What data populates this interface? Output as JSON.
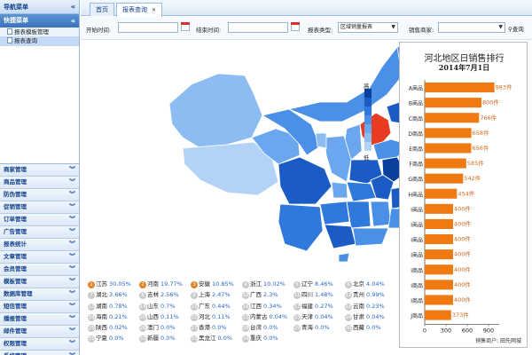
{
  "sidebar": {
    "title": "导航菜单",
    "quick_menu": "快捷菜单",
    "quick_items": [
      {
        "label": "报表模板管理",
        "active": false
      },
      {
        "label": "报表查询",
        "active": true
      }
    ],
    "menus": [
      "商家管理",
      "商品管理",
      "防伪管理",
      "促销管理",
      "订单管理",
      "广告管理",
      "报表统计",
      "文章管理",
      "会员管理",
      "模板管理",
      "数据库管理",
      "短信管理",
      "播报管理",
      "邮件管理",
      "权限管理",
      "系统管理"
    ]
  },
  "tabs": [
    {
      "label": "首页",
      "active": false
    },
    {
      "label": "报表查询",
      "active": true
    }
  ],
  "filters": {
    "start_label": "开始时间:",
    "start_value": "",
    "end_label": "结束时间:",
    "end_value": "",
    "type_label": "报表类型:",
    "type_value": "区域销量报表",
    "merchant_label": "销售商家:",
    "merchant_value": "",
    "search_label": "查询"
  },
  "map": {
    "legend_high": "高",
    "legend_low": "低",
    "legend_colors": [
      "#0b3f9e",
      "#1b5cc4",
      "#2f78dc",
      "#4a90e6",
      "#6aa7ee",
      "#8cbcf2",
      "#b3d2f7"
    ],
    "highlight_color": "#e83b1f"
  },
  "province_list": [
    [
      {
        "rank": "1",
        "name": "江苏",
        "value": "30.05%"
      },
      {
        "rank": "2",
        "name": "河南",
        "value": "19.77%"
      },
      {
        "rank": "3",
        "name": "安徽",
        "value": "10.85%"
      },
      {
        "rank": "4",
        "name": "浙江",
        "value": "10.02%"
      },
      {
        "rank": "5",
        "name": "辽宁",
        "value": "8.46%"
      },
      {
        "rank": "6",
        "name": "北京",
        "value": "4.04%"
      }
    ],
    [
      {
        "rank": "7",
        "name": "湖北",
        "value": "3.66%"
      },
      {
        "rank": "8",
        "name": "吉林",
        "value": "2.56%"
      },
      {
        "rank": "9",
        "name": "上海",
        "value": "2.47%"
      },
      {
        "rank": "10",
        "name": "广西",
        "value": "2.3%"
      },
      {
        "rank": "11",
        "name": "四川",
        "value": "1.48%"
      },
      {
        "rank": "12",
        "name": "贵州",
        "value": "0.99%"
      }
    ],
    [
      {
        "rank": "13",
        "name": "湖南",
        "value": "0.78%"
      },
      {
        "rank": "14",
        "name": "山东",
        "value": "0.7%"
      },
      {
        "rank": "15",
        "name": "广东",
        "value": "0.44%"
      },
      {
        "rank": "16",
        "name": "江西",
        "value": "0.34%"
      },
      {
        "rank": "17",
        "name": "福建",
        "value": "0.27%"
      },
      {
        "rank": "18",
        "name": "云南",
        "value": "0.23%"
      }
    ],
    [
      {
        "rank": "19",
        "name": "海南",
        "value": "0.21%"
      },
      {
        "rank": "20",
        "name": "山西",
        "value": "0.11%"
      },
      {
        "rank": "21",
        "name": "河北",
        "value": "0.11%"
      },
      {
        "rank": "22",
        "name": "内蒙古",
        "value": "0.04%"
      },
      {
        "rank": "23",
        "name": "天津",
        "value": "0.04%"
      },
      {
        "rank": "24",
        "name": "甘肃",
        "value": "0.04%"
      }
    ],
    [
      {
        "rank": "25",
        "name": "陕西",
        "value": "0.02%"
      },
      {
        "rank": "26",
        "name": "澳门",
        "value": "0.0%"
      },
      {
        "rank": "27",
        "name": "香港",
        "value": "0.0%"
      },
      {
        "rank": "28",
        "name": "台湾",
        "value": "0.0%"
      },
      {
        "rank": "29",
        "name": "青海",
        "value": "0.0%"
      },
      {
        "rank": "30",
        "name": "西藏",
        "value": "0.0%"
      }
    ],
    [
      {
        "rank": "31",
        "name": "宁夏",
        "value": "0.0%"
      },
      {
        "rank": "32",
        "name": "新疆",
        "value": "0.0%"
      },
      {
        "rank": "33",
        "name": "黑龙江",
        "value": "0.0%"
      },
      {
        "rank": "34",
        "name": "重庆",
        "value": "0.0%"
      }
    ]
  ],
  "chart_data": {
    "type": "bar",
    "orientation": "horizontal",
    "title": "河北地区日销售排行",
    "subtitle": "2014年7月1日",
    "categories": [
      "A商品",
      "B商品",
      "C商品",
      "D商品",
      "E商品",
      "F商品",
      "G商品",
      "H商品",
      "I商品",
      "I商品",
      "I商品",
      "I商品",
      "I商品",
      "I商品",
      "I商品",
      "J商品"
    ],
    "values": [
      983,
      800,
      766,
      658,
      656,
      585,
      542,
      454,
      400,
      400,
      400,
      400,
      400,
      400,
      400,
      373
    ],
    "value_labels": [
      "983件",
      "800件",
      "766件",
      "658件",
      "656件",
      "585件",
      "542件",
      "454件",
      "400件",
      "400件",
      "400件",
      "400件",
      "400件",
      "400件",
      "400件",
      "373件"
    ],
    "xlim": [
      0,
      1000
    ],
    "x_ticks": [
      "0",
      "300",
      "600",
      "900"
    ],
    "bar_color": "#f07a12",
    "label_color": "#d2691e",
    "footer": "销售商户: 田先网城"
  }
}
